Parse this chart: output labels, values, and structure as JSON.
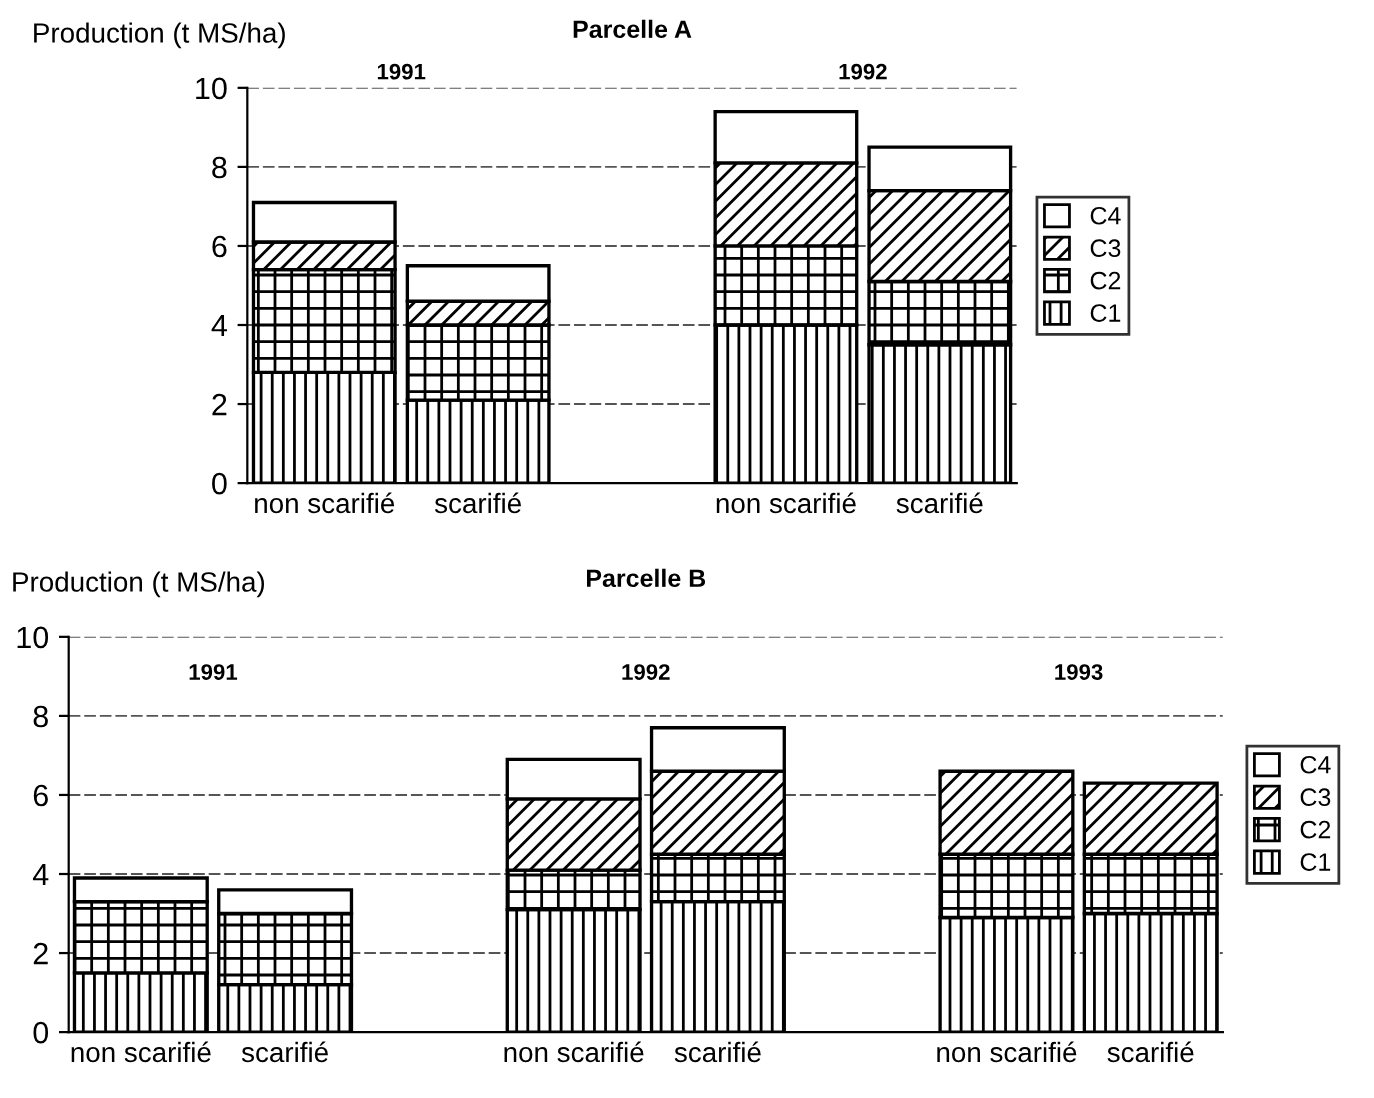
{
  "chart_data": [
    {
      "type": "bar",
      "title": "Parcelle A",
      "ylabel": "Production (t MS/ha)",
      "stacked": true,
      "categories": [
        "non scarifié",
        "scarifié",
        null,
        "non scarifié",
        "scarifié"
      ],
      "annotations": [
        "1991",
        "1992"
      ],
      "series": [
        {
          "name": "C1",
          "color": "#000000",
          "values": [
            2.8,
            2.1,
            null,
            4.0,
            3.5
          ]
        },
        {
          "name": "C2",
          "color": "#000000",
          "values": [
            2.6,
            1.9,
            null,
            2.0,
            1.6
          ]
        },
        {
          "name": "C3",
          "color": "#000000",
          "values": [
            0.7,
            0.6,
            null,
            2.1,
            2.3
          ]
        },
        {
          "name": "C4",
          "color": "#ffffff",
          "values": [
            1.0,
            0.9,
            null,
            1.3,
            1.1
          ]
        }
      ],
      "ylim": [
        0,
        10
      ],
      "yticks": [
        0,
        2,
        4,
        6,
        8,
        10
      ],
      "grid": "y",
      "legend": "right"
    },
    {
      "type": "bar",
      "title": "Parcelle B",
      "ylabel": "Production (t MS/ha)",
      "stacked": true,
      "categories": [
        "non scarifié",
        "scarifié",
        null,
        "non scarifié",
        "scarifié",
        null,
        "non scarifié",
        "scarifié"
      ],
      "annotations": [
        "1991",
        "1992",
        "1993"
      ],
      "series": [
        {
          "name": "C1",
          "color": "#000000",
          "values": [
            1.5,
            1.2,
            null,
            3.1,
            3.3,
            null,
            2.9,
            3.0
          ]
        },
        {
          "name": "C2",
          "color": "#000000",
          "values": [
            1.8,
            1.8,
            null,
            1.0,
            1.2,
            null,
            1.6,
            1.5
          ]
        },
        {
          "name": "C3",
          "color": "#000000",
          "values": [
            0,
            0,
            null,
            1.8,
            2.1,
            null,
            2.1,
            1.8
          ]
        },
        {
          "name": "C4",
          "color": "#ffffff",
          "values": [
            0.6,
            0.6,
            null,
            1.0,
            1.1,
            null,
            null,
            null
          ]
        }
      ],
      "ylim": [
        0,
        10
      ],
      "yticks": [
        0,
        2,
        4,
        6,
        8,
        10
      ],
      "grid": "y",
      "legend": "right"
    }
  ]
}
